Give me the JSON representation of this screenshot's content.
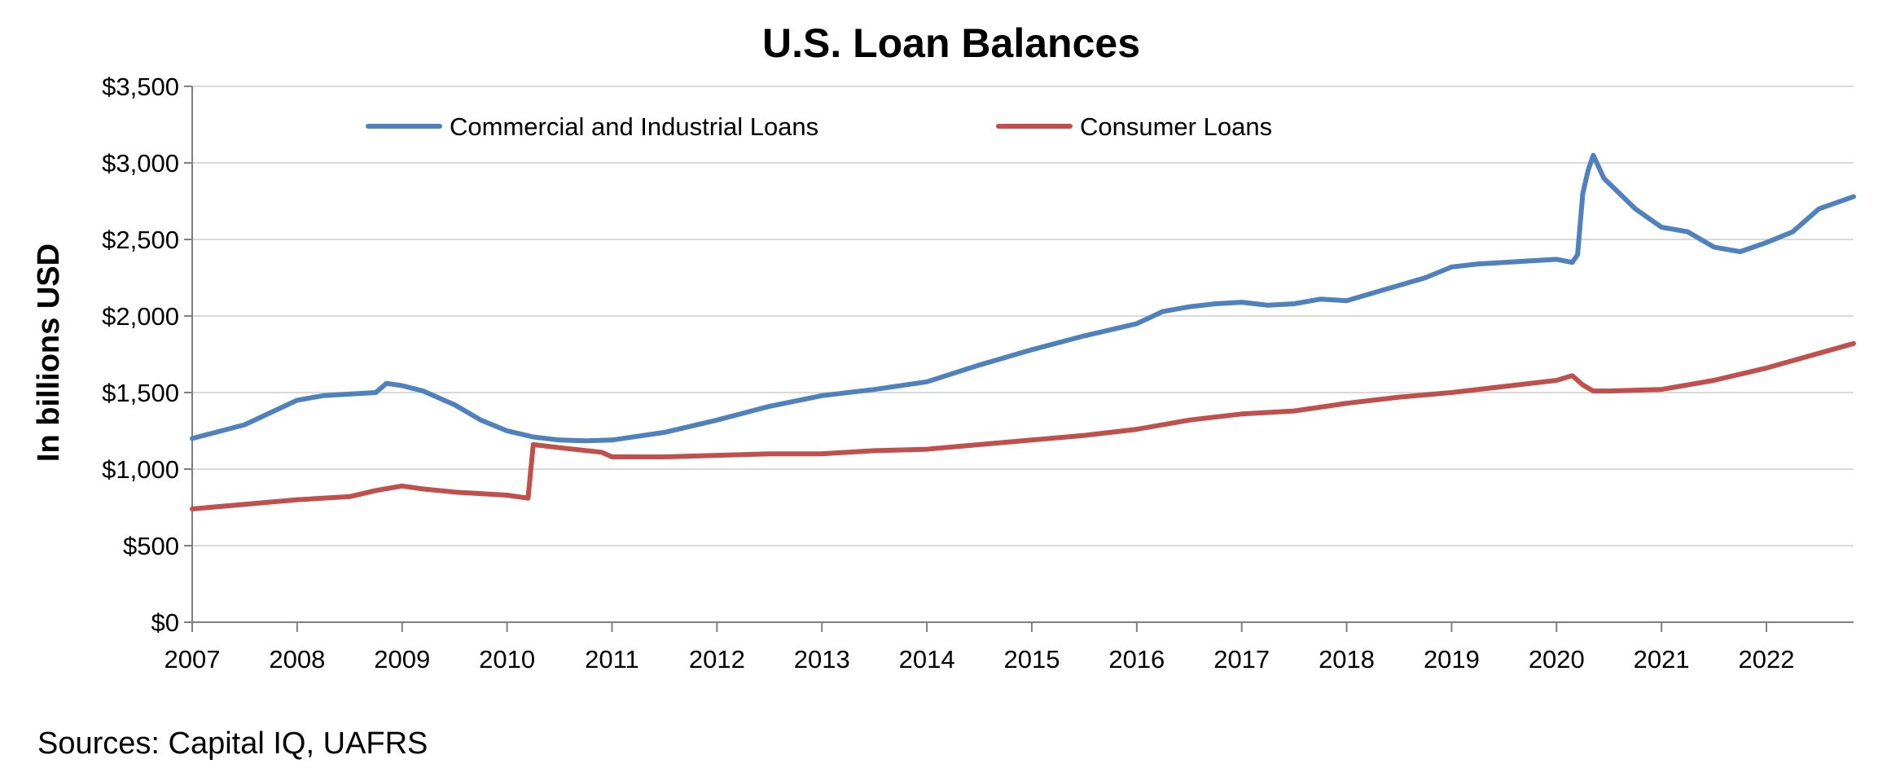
{
  "chart_data": {
    "type": "line",
    "title": "U.S. Loan Balances",
    "ylabel": "In billions USD",
    "xlabel": "",
    "source": "Sources: Capital IQ, UAFRS",
    "xlim": [
      2007.0,
      2022.83
    ],
    "ylim": [
      0,
      3500
    ],
    "y_ticks": [
      0,
      500,
      1000,
      1500,
      2000,
      2500,
      3000,
      3500
    ],
    "y_tick_labels": [
      "$0",
      "$500",
      "$1,000",
      "$1,500",
      "$2,000",
      "$2,500",
      "$3,000",
      "$3,500"
    ],
    "x_ticks": [
      2007,
      2008,
      2009,
      2010,
      2011,
      2012,
      2013,
      2014,
      2015,
      2016,
      2017,
      2018,
      2019,
      2020,
      2021,
      2022
    ],
    "x_tick_labels": [
      "2007",
      "2008",
      "2009",
      "2010",
      "2011",
      "2012",
      "2013",
      "2014",
      "2015",
      "2016",
      "2017",
      "2018",
      "2019",
      "2020",
      "2021",
      "2022"
    ],
    "grid": "horizontal",
    "legend_position": "top",
    "series": [
      {
        "name": "Commercial and Industrial Loans",
        "color": "#4f81bd",
        "x": [
          2007.0,
          2007.5,
          2008.0,
          2008.25,
          2008.5,
          2008.75,
          2008.85,
          2009.0,
          2009.2,
          2009.5,
          2009.75,
          2010.0,
          2010.25,
          2010.5,
          2010.75,
          2011.0,
          2011.5,
          2012.0,
          2012.5,
          2013.0,
          2013.5,
          2014.0,
          2014.5,
          2015.0,
          2015.5,
          2016.0,
          2016.25,
          2016.5,
          2016.75,
          2017.0,
          2017.25,
          2017.5,
          2017.75,
          2018.0,
          2018.25,
          2018.5,
          2018.75,
          2019.0,
          2019.25,
          2019.5,
          2019.75,
          2020.0,
          2020.15,
          2020.2,
          2020.25,
          2020.3,
          2020.35,
          2020.45,
          2020.75,
          2021.0,
          2021.25,
          2021.5,
          2021.75,
          2022.0,
          2022.25,
          2022.5,
          2022.83
        ],
        "values": [
          1200,
          1290,
          1450,
          1480,
          1490,
          1500,
          1560,
          1545,
          1510,
          1420,
          1320,
          1250,
          1210,
          1190,
          1185,
          1190,
          1240,
          1320,
          1410,
          1480,
          1520,
          1570,
          1680,
          1780,
          1870,
          1950,
          2030,
          2060,
          2080,
          2090,
          2070,
          2080,
          2110,
          2100,
          2150,
          2200,
          2250,
          2320,
          2340,
          2350,
          2360,
          2370,
          2350,
          2400,
          2800,
          2950,
          3050,
          2900,
          2700,
          2580,
          2550,
          2450,
          2420,
          2480,
          2550,
          2700,
          2780
        ]
      },
      {
        "name": "Consumer Loans",
        "color": "#c0504d",
        "x": [
          2007.0,
          2007.5,
          2008.0,
          2008.5,
          2008.75,
          2009.0,
          2009.2,
          2009.5,
          2009.75,
          2010.0,
          2010.2,
          2010.25,
          2010.5,
          2010.9,
          2011.0,
          2011.5,
          2012.0,
          2012.5,
          2013.0,
          2013.5,
          2014.0,
          2014.5,
          2015.0,
          2015.5,
          2016.0,
          2016.5,
          2017.0,
          2017.5,
          2018.0,
          2018.5,
          2019.0,
          2019.5,
          2020.0,
          2020.15,
          2020.25,
          2020.35,
          2020.5,
          2021.0,
          2021.5,
          2022.0,
          2022.83
        ],
        "values": [
          740,
          770,
          800,
          820,
          860,
          890,
          870,
          850,
          840,
          830,
          810,
          1160,
          1140,
          1110,
          1080,
          1080,
          1090,
          1100,
          1100,
          1120,
          1130,
          1160,
          1190,
          1220,
          1260,
          1320,
          1360,
          1380,
          1430,
          1470,
          1500,
          1540,
          1580,
          1610,
          1550,
          1510,
          1510,
          1520,
          1580,
          1660,
          1820
        ]
      }
    ]
  }
}
